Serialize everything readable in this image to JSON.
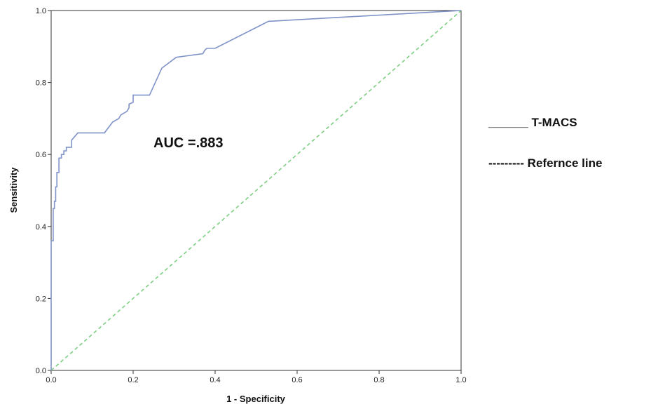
{
  "chart_data": {
    "type": "line",
    "xlabel": "1 - Specificity",
    "ylabel": "Sensitivity",
    "xlim": [
      0,
      1
    ],
    "ylim": [
      0,
      1
    ],
    "x_ticks": [
      "0.0",
      "0.2",
      "0.4",
      "0.6",
      "0.8",
      "1.0"
    ],
    "y_ticks": [
      "0.0",
      "0.2",
      "0.4",
      "0.6",
      "0.8",
      "1.0"
    ],
    "grid": false,
    "legend_position": "right",
    "annotation": "AUC =.883",
    "series": [
      {
        "name": "T-MACS",
        "color": "#8093c8",
        "legend_text": "______ T-MACS",
        "x": [
          0.0,
          0.0,
          0.005,
          0.005,
          0.008,
          0.008,
          0.011,
          0.011,
          0.014,
          0.014,
          0.019,
          0.019,
          0.025,
          0.025,
          0.031,
          0.031,
          0.037,
          0.037,
          0.05,
          0.05,
          0.065,
          0.13,
          0.15,
          0.165,
          0.17,
          0.185,
          0.19,
          0.19,
          0.2,
          0.2,
          0.22,
          0.24,
          0.27,
          0.305,
          0.37,
          0.375,
          0.38,
          0.4,
          0.53,
          1.0
        ],
        "y": [
          0.0,
          0.36,
          0.36,
          0.45,
          0.45,
          0.47,
          0.47,
          0.51,
          0.51,
          0.55,
          0.55,
          0.59,
          0.59,
          0.6,
          0.6,
          0.61,
          0.61,
          0.62,
          0.62,
          0.64,
          0.66,
          0.66,
          0.69,
          0.7,
          0.71,
          0.72,
          0.73,
          0.74,
          0.745,
          0.765,
          0.765,
          0.765,
          0.84,
          0.87,
          0.88,
          0.89,
          0.895,
          0.895,
          0.97,
          1.0
        ]
      },
      {
        "name": "Refernce line",
        "color": "#7ccf82",
        "dashed": true,
        "legend_text": "--------- Refernce line",
        "x": [
          0,
          1
        ],
        "y": [
          0,
          1
        ]
      }
    ]
  }
}
